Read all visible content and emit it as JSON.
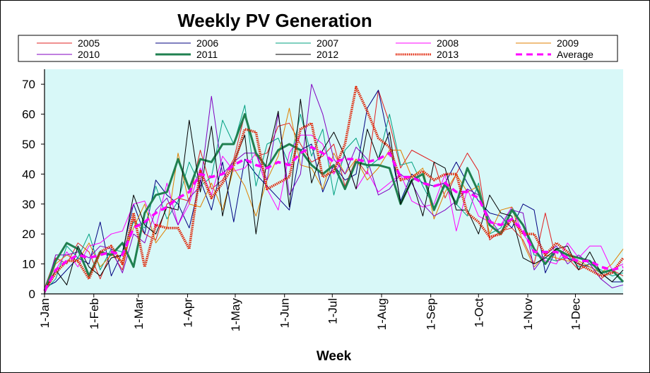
{
  "chart_data": {
    "type": "line",
    "title": "Weekly PV Generation",
    "xlabel": "Week",
    "ylabel": "",
    "ylim": [
      0,
      75
    ],
    "yticks": [
      0,
      10,
      20,
      30,
      40,
      50,
      60,
      70
    ],
    "xlim": [
      0,
      52
    ],
    "xticks": [
      {
        "label": "1-Jan",
        "week": 0
      },
      {
        "label": "1-Feb",
        "week": 4.43
      },
      {
        "label": "1-Mar",
        "week": 8.43
      },
      {
        "label": "1-Apr",
        "week": 12.86
      },
      {
        "label": "1-May",
        "week": 17.14
      },
      {
        "label": "1-Jun",
        "week": 21.57
      },
      {
        "label": "1-Jul",
        "week": 25.86
      },
      {
        "label": "1-Aug",
        "week": 30.29
      },
      {
        "label": "1-Sep",
        "week": 34.71
      },
      {
        "label": "1-Oct",
        "week": 39.0
      },
      {
        "label": "1-Nov",
        "week": 43.43
      },
      {
        "label": "1-Dec",
        "week": 47.71
      }
    ],
    "grid": false,
    "legend_position": "top",
    "plot_background": "#d8f8f8",
    "series": [
      {
        "name": "2005",
        "color": "#e02020",
        "width": 1,
        "style": "solid",
        "values": [
          2,
          12,
          10,
          17,
          14,
          5,
          14,
          8,
          25,
          20,
          18,
          30,
          32,
          31,
          48,
          35,
          38,
          45,
          60,
          46,
          47,
          56,
          57,
          50,
          44,
          46,
          50,
          36,
          45,
          40,
          68,
          57,
          42,
          48,
          46,
          44,
          32,
          40,
          47,
          41,
          18,
          21,
          22,
          18,
          10,
          27,
          11,
          12,
          8,
          10,
          5,
          8,
          6
        ]
      },
      {
        "name": "2006",
        "color": "#000080",
        "width": 1,
        "style": "solid",
        "values": [
          2,
          4,
          8,
          12,
          10,
          24,
          6,
          14,
          30,
          20,
          38,
          33,
          30,
          22,
          38,
          28,
          44,
          24,
          45,
          40,
          36,
          32,
          28,
          48,
          50,
          34,
          43,
          38,
          40,
          62,
          68,
          50,
          31,
          40,
          37,
          36,
          37,
          44,
          37,
          31,
          27,
          26,
          22,
          30,
          28,
          7,
          15,
          12,
          10,
          9,
          7,
          4,
          4
        ]
      },
      {
        "name": "2007",
        "color": "#00a080",
        "width": 1,
        "style": "solid",
        "values": [
          1,
          5,
          16,
          12,
          20,
          8,
          15,
          14,
          24,
          22,
          36,
          25,
          31,
          44,
          36,
          39,
          58,
          50,
          63,
          36,
          50,
          52,
          43,
          60,
          46,
          55,
          33,
          48,
          52,
          42,
          45,
          60,
          43,
          44,
          36,
          29,
          36,
          30,
          26,
          37,
          20,
          22,
          29,
          23,
          13,
          12,
          11,
          13,
          9,
          10,
          8,
          6,
          7
        ]
      },
      {
        "name": "2008",
        "color": "#ff00ff",
        "width": 1,
        "style": "solid",
        "values": [
          0,
          8,
          14,
          9,
          16,
          17,
          20,
          21,
          30,
          31,
          22,
          37,
          23,
          30,
          42,
          33,
          46,
          41,
          42,
          47,
          35,
          28,
          47,
          53,
          53,
          50,
          40,
          46,
          35,
          41,
          34,
          37,
          40,
          31,
          29,
          30,
          40,
          21,
          35,
          26,
          24,
          23,
          29,
          20,
          15,
          11,
          10,
          17,
          12,
          16,
          16,
          8,
          10
        ]
      },
      {
        "name": "2009",
        "color": "#e08000",
        "width": 1,
        "style": "solid",
        "values": [
          0,
          10,
          13,
          11,
          17,
          9,
          13,
          11,
          22,
          30,
          17,
          22,
          47,
          30,
          29,
          37,
          28,
          42,
          36,
          26,
          38,
          46,
          62,
          43,
          42,
          35,
          47,
          40,
          45,
          38,
          42,
          48,
          48,
          39,
          42,
          25,
          34,
          40,
          34,
          36,
          20,
          28,
          29,
          17,
          9,
          13,
          12,
          11,
          11,
          9,
          7,
          10,
          15
        ]
      },
      {
        "name": "2010",
        "color": "#8000c0",
        "width": 1,
        "style": "solid",
        "values": [
          0,
          13,
          13,
          14,
          12,
          16,
          15,
          7,
          20,
          17,
          28,
          32,
          23,
          32,
          36,
          66,
          40,
          44,
          47,
          47,
          38,
          60,
          33,
          40,
          70,
          60,
          45,
          40,
          49,
          45,
          33,
          35,
          40,
          37,
          30,
          26,
          28,
          31,
          35,
          33,
          25,
          20,
          28,
          27,
          8,
          13,
          16,
          10,
          13,
          10,
          5,
          2,
          3
        ]
      },
      {
        "name": "2011",
        "color": "#208050",
        "width": 3,
        "style": "solid",
        "values": [
          1,
          11,
          17,
          15,
          6,
          14,
          13,
          17,
          9,
          27,
          33,
          34,
          45,
          35,
          45,
          44,
          50,
          50,
          60,
          47,
          42,
          48,
          50,
          48,
          43,
          40,
          43,
          35,
          44,
          43,
          43,
          42,
          30,
          38,
          40,
          28,
          37,
          30,
          42,
          34,
          23,
          20,
          28,
          23,
          15,
          10,
          15,
          13,
          12,
          11,
          7,
          8,
          4
        ]
      },
      {
        "name": "2012",
        "color": "#000000",
        "width": 1,
        "style": "solid",
        "values": [
          1,
          8,
          3,
          16,
          9,
          6,
          12,
          13,
          33,
          23,
          20,
          29,
          28,
          58,
          34,
          56,
          26,
          44,
          53,
          20,
          45,
          61,
          29,
          65,
          37,
          48,
          54,
          46,
          35,
          55,
          45,
          54,
          30,
          38,
          26,
          44,
          42,
          28,
          28,
          20,
          33,
          27,
          26,
          12,
          10,
          12,
          15,
          16,
          8,
          14,
          7,
          4,
          8
        ]
      },
      {
        "name": "2013",
        "color": "#e02000",
        "width": 3.5,
        "style": "dotted",
        "values": [
          1,
          7,
          11,
          11,
          5,
          14,
          16,
          10,
          27,
          9,
          23,
          22,
          22,
          15,
          41,
          32,
          37,
          43,
          55,
          54,
          35,
          37,
          39,
          55,
          57,
          39,
          41,
          50,
          69,
          61,
          52,
          49,
          38,
          39,
          41,
          38,
          40,
          40,
          27,
          24,
          19,
          20,
          25,
          20,
          20,
          13,
          17,
          14,
          10,
          8,
          6,
          7,
          12
        ]
      },
      {
        "name": "Average",
        "color": "#ff00ff",
        "width": 3.5,
        "style": "dashed",
        "values": [
          1,
          8,
          11,
          13,
          12,
          13,
          14,
          13,
          22,
          24,
          27,
          29,
          32,
          34,
          40,
          39,
          40,
          43,
          45,
          43,
          42,
          44,
          43,
          47,
          49,
          47,
          44,
          45,
          45,
          44,
          45,
          47,
          39,
          39,
          37,
          36,
          37,
          34,
          34,
          32,
          24,
          23,
          25,
          21,
          14,
          14,
          14,
          12,
          11,
          11,
          9,
          8,
          9
        ]
      }
    ]
  }
}
